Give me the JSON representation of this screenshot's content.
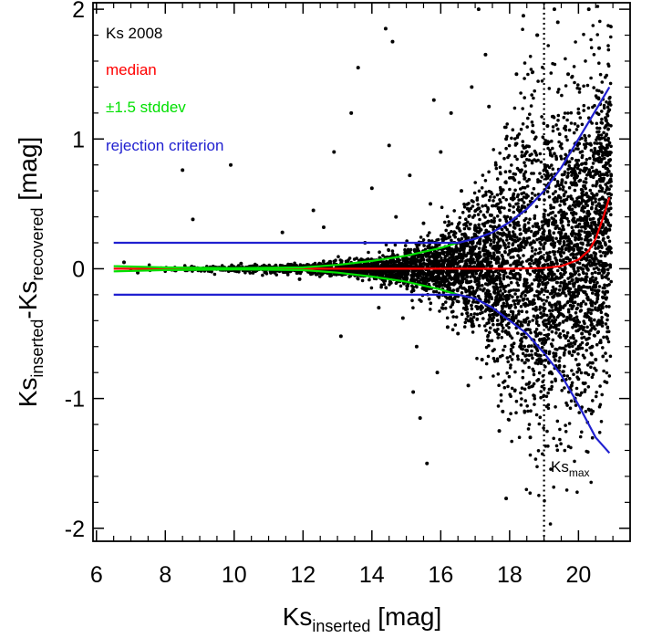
{
  "chart_data": {
    "type": "scatter",
    "xlabel": "Ks",
    "xlabel_sub": "inserted",
    "xlabel_unit": " [mag]",
    "ylabel_a": "Ks",
    "ylabel_a_sub": "inserted",
    "ylabel_dash": "-Ks",
    "ylabel_b_sub": "recovered",
    "ylabel_unit": " [mag]",
    "xlim": [
      5.9,
      21.5
    ],
    "ylim": [
      -2.1,
      2.05
    ],
    "x_ticks": [
      6,
      8,
      10,
      12,
      14,
      16,
      18,
      20
    ],
    "y_ticks": [
      -2,
      -1,
      0,
      1,
      2
    ],
    "x_tick_labels": [
      "6",
      "8",
      "10",
      "12",
      "14",
      "16",
      "18",
      "20"
    ],
    "y_tick_labels": [
      "-2",
      "-1",
      "0",
      "1",
      "2"
    ],
    "legend": [
      {
        "label": "Ks 2008",
        "color": "#000000"
      },
      {
        "label": "median",
        "color": "#ff0000"
      },
      {
        "label": "±1.5 stddev",
        "color": "#00e000"
      },
      {
        "label": "rejection criterion",
        "color": "#2020d0"
      }
    ],
    "vline": {
      "x": 19.0,
      "label": "Ks",
      "label_sub": "max",
      "style": "dotted"
    },
    "series": [
      {
        "name": "median",
        "color": "#ff0000",
        "x": [
          6.5,
          10,
          14,
          17,
          18,
          19,
          19.5,
          20,
          20.3,
          20.5,
          20.7,
          20.9
        ],
        "y": [
          0,
          0,
          0,
          0,
          0,
          0.005,
          0.02,
          0.07,
          0.14,
          0.23,
          0.38,
          0.55
        ]
      },
      {
        "name": "+1.5 stddev",
        "color": "#00e000",
        "x": [
          6.5,
          8,
          10,
          12,
          13,
          14,
          15,
          16,
          16.5
        ],
        "y": [
          0.02,
          0.01,
          0.005,
          0.01,
          0.03,
          0.06,
          0.1,
          0.16,
          0.2
        ]
      },
      {
        "name": "-1.5 stddev",
        "color": "#00e000",
        "x": [
          6.5,
          8,
          10,
          12,
          13,
          14,
          15,
          16,
          16.5
        ],
        "y": [
          -0.02,
          -0.01,
          -0.005,
          -0.01,
          -0.03,
          -0.06,
          -0.1,
          -0.16,
          -0.2
        ]
      },
      {
        "name": "rejection criterion upper",
        "color": "#2020d0",
        "x": [
          6.5,
          16.5,
          17,
          17.5,
          18,
          18.5,
          19,
          19.5,
          20,
          20.5,
          20.9
        ],
        "y": [
          0.2,
          0.2,
          0.23,
          0.28,
          0.36,
          0.46,
          0.6,
          0.78,
          1.0,
          1.22,
          1.4
        ]
      },
      {
        "name": "rejection criterion lower",
        "color": "#2020d0",
        "x": [
          6.5,
          16.5,
          17,
          17.5,
          18,
          18.5,
          19,
          19.5,
          20,
          20.5,
          20.9
        ],
        "y": [
          -0.2,
          -0.2,
          -0.23,
          -0.3,
          -0.4,
          -0.5,
          -0.65,
          -0.82,
          -1.05,
          -1.3,
          -1.42
        ]
      }
    ],
    "scatter_points": {
      "x": [
        6.8,
        7.2,
        8.5,
        8.8,
        9.9,
        10.2,
        11.4,
        11.9,
        12.3,
        12.6,
        13.1,
        13.4,
        13.8,
        14.0,
        14.2,
        14.4,
        14.5,
        14.7,
        14.9,
        15.1,
        15.3,
        15.5,
        15.6,
        15.7,
        15.9,
        16.0,
        16.2,
        16.3,
        16.5,
        16.6,
        16.8,
        16.9,
        17.0,
        17.2,
        17.3,
        17.5,
        17.6,
        17.8,
        17.9,
        18.0,
        18.2,
        18.3,
        18.5,
        18.6,
        18.8,
        18.9,
        19.1,
        19.2,
        19.4,
        19.5,
        19.7,
        19.8,
        20.0,
        20.1,
        20.3,
        20.4,
        20.6,
        20.7,
        20.8,
        15.4,
        15.8,
        16.4,
        17.1,
        17.7,
        18.1,
        18.4,
        18.7,
        19.3,
        19.6,
        19.9,
        20.2,
        20.5,
        20.9,
        14.6,
        13.6,
        12.9,
        16.7,
        17.4,
        18.9,
        19.0,
        20.0,
        20.6,
        17.9,
        15.2
      ],
      "y": [
        0.05,
        -0.03,
        0.76,
        0.38,
        0.8,
        0.04,
        0.28,
        -0.08,
        0.45,
        0.32,
        -0.52,
        1.2,
        0.2,
        0.62,
        -0.3,
        1.85,
        0.95,
        0.4,
        -0.38,
        0.72,
        -0.6,
        0.35,
        -1.5,
        0.5,
        -0.8,
        0.9,
        -0.45,
        1.2,
        -0.5,
        0.6,
        -0.9,
        1.4,
        0.3,
        -0.7,
        1.65,
        -0.4,
        0.8,
        -1.1,
        1.0,
        -0.3,
        1.5,
        -0.6,
        0.9,
        -1.3,
        1.8,
        -0.5,
        1.1,
        -0.8,
        1.9,
        -0.35,
        1.5,
        -0.9,
        1.2,
        -0.5,
        2.0,
        -0.6,
        1.7,
        -0.3,
        1.1,
        -1.15,
        1.3,
        0.2,
        2.0,
        -1.25,
        0.7,
        1.95,
        -0.55,
        2.0,
        0.5,
        -1.0,
        0.4,
        -0.7,
        0.3,
        1.75,
        1.55,
        0.9,
        0.25,
        1.25,
        -0.7,
        0.4,
        -0.85,
        0.2,
        -1.77,
        -0.95
      ]
    }
  }
}
